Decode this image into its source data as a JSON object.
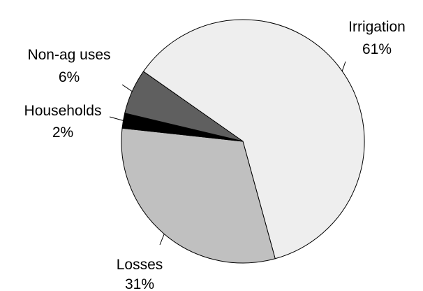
{
  "chart_data": {
    "type": "pie",
    "title": "",
    "legend": "none",
    "slices": [
      {
        "name": "Irrigation",
        "value": 61,
        "value_label": "61%",
        "color": "#eeeeee"
      },
      {
        "name": "Losses",
        "value": 31,
        "value_label": "31%",
        "color": "#c0c0c0"
      },
      {
        "name": "Households",
        "value": 2,
        "value_label": "2%",
        "color": "#000000"
      },
      {
        "name": "Non-ag uses",
        "value": 6,
        "value_label": "6%",
        "color": "#5f5f5f"
      }
    ]
  }
}
